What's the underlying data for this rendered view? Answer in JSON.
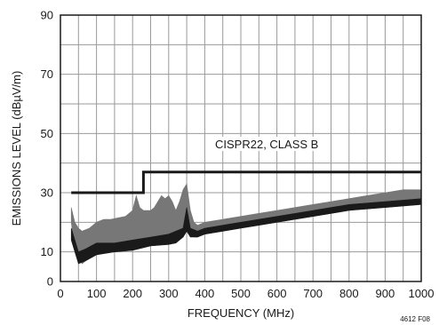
{
  "chart_data": {
    "type": "area",
    "xlabel": "FREQUENCY (MHz)",
    "ylabel": "EMISSIONS LEVEL (dBµV/m)",
    "xlim": [
      0,
      1000
    ],
    "ylim": [
      0,
      90
    ],
    "x_ticks": [
      0,
      100,
      200,
      300,
      400,
      500,
      600,
      700,
      800,
      900,
      1000
    ],
    "y_ticks": [
      0,
      10,
      30,
      50,
      70,
      90
    ],
    "grid": "on",
    "figure_id": "4612 F08",
    "limit_line": {
      "label": "CISPR22, CLASS B",
      "x": [
        30,
        230,
        230,
        1000
      ],
      "y": [
        30,
        30,
        37,
        37
      ]
    },
    "series": [
      {
        "color": "#777777",
        "x": [
          30,
          40,
          50,
          60,
          70,
          80,
          90,
          100,
          120,
          140,
          160,
          180,
          200,
          210,
          220,
          230,
          240,
          250,
          260,
          270,
          280,
          290,
          300,
          310,
          320,
          330,
          340,
          350,
          360,
          370,
          380,
          400,
          450,
          500,
          550,
          600,
          650,
          700,
          750,
          800,
          850,
          900,
          950,
          1000
        ],
        "y_upper": [
          25,
          20,
          18,
          17,
          17.5,
          18,
          19,
          20,
          21,
          21,
          21.5,
          22,
          24,
          29,
          25,
          24,
          24,
          24,
          25,
          27,
          29,
          28,
          29,
          27,
          24,
          27,
          31,
          33,
          24,
          20,
          19,
          20,
          21,
          22,
          23,
          24,
          25,
          26,
          27,
          28,
          29,
          30,
          31,
          31
        ],
        "y_lower": [
          20,
          10,
          8,
          6,
          7,
          8,
          9,
          10,
          10,
          10,
          10.5,
          11,
          11,
          11.5,
          12,
          12,
          12.5,
          13,
          13.5,
          13,
          12.5,
          12.5,
          12.5,
          13,
          14,
          15,
          15,
          17,
          16,
          15,
          15,
          16,
          17,
          18,
          19,
          20,
          21,
          22,
          23,
          24,
          25,
          26,
          27,
          28
        ]
      },
      {
        "color": "#1a1a1a",
        "x": [
          30,
          50,
          70,
          100,
          150,
          200,
          250,
          300,
          320,
          340,
          350,
          360,
          380,
          400,
          500,
          600,
          700,
          800,
          900,
          1000
        ],
        "y_upper": [
          18,
          10,
          11,
          13,
          13,
          14,
          15,
          16,
          17,
          18,
          25,
          18,
          17,
          18,
          20,
          22,
          24,
          26,
          27,
          28
        ],
        "y_lower": [
          14,
          6,
          7,
          9,
          10,
          10.5,
          12,
          12.5,
          13,
          15,
          17,
          15,
          15,
          16,
          18,
          20,
          22,
          24,
          25,
          26
        ]
      }
    ]
  }
}
